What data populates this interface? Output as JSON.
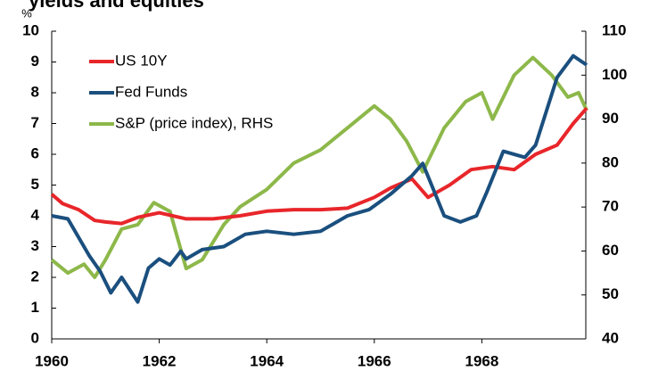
{
  "chart_data": {
    "type": "line",
    "title": "yields and equities",
    "y_unit": "%",
    "xlim": [
      1960,
      1970
    ],
    "xticks": [
      1960,
      1962,
      1964,
      1966,
      1968
    ],
    "ylim": [
      0,
      10
    ],
    "yticks": [
      0,
      1,
      2,
      3,
      4,
      5,
      6,
      7,
      8,
      9,
      10
    ],
    "y2lim": [
      40,
      110
    ],
    "y2ticks": [
      40,
      50,
      60,
      70,
      80,
      90,
      100,
      110
    ],
    "legend": "upper left",
    "series": [
      {
        "name": "US 10Y",
        "color": "#e8262a",
        "x": [
          1960,
          1960.2,
          1960.5,
          1960.8,
          1961,
          1961.3,
          1961.6,
          1962,
          1962.5,
          1963,
          1963.5,
          1964,
          1964.5,
          1965,
          1965.5,
          1966,
          1966.3,
          1966.7,
          1967,
          1967.4,
          1967.8,
          1968.2,
          1968.6,
          1969,
          1969.4,
          1969.7,
          1969.95
        ],
        "values": [
          4.7,
          4.4,
          4.2,
          3.85,
          3.8,
          3.75,
          3.95,
          4.1,
          3.9,
          3.9,
          4.0,
          4.15,
          4.2,
          4.2,
          4.25,
          4.6,
          4.9,
          5.2,
          4.6,
          5.0,
          5.5,
          5.6,
          5.5,
          6.0,
          6.3,
          7.0,
          7.5
        ]
      },
      {
        "name": "Fed Funds",
        "color": "#1a4f7e",
        "x": [
          1960,
          1960.3,
          1960.7,
          1960.9,
          1961.1,
          1961.3,
          1961.6,
          1961.8,
          1962,
          1962.2,
          1962.4,
          1962.5,
          1962.8,
          1963.2,
          1963.6,
          1964,
          1964.5,
          1965,
          1965.5,
          1965.9,
          1966.3,
          1966.7,
          1966.9,
          1967.3,
          1967.6,
          1967.9,
          1968.1,
          1968.4,
          1968.8,
          1969,
          1969.4,
          1969.7,
          1969.95
        ],
        "values": [
          4.0,
          3.9,
          2.7,
          2.2,
          1.5,
          2.0,
          1.2,
          2.3,
          2.6,
          2.4,
          2.85,
          2.6,
          2.9,
          3.0,
          3.4,
          3.5,
          3.4,
          3.5,
          4.0,
          4.2,
          4.7,
          5.3,
          5.7,
          4.0,
          3.8,
          4.0,
          4.8,
          6.1,
          5.9,
          6.3,
          8.5,
          9.2,
          8.9
        ]
      },
      {
        "name": "S&P (price index), RHS",
        "color": "#8db84a",
        "axis": "y2",
        "x": [
          1960,
          1960.3,
          1960.6,
          1960.8,
          1961,
          1961.3,
          1961.6,
          1961.9,
          1962.2,
          1962.5,
          1962.8,
          1963.2,
          1963.5,
          1964,
          1964.5,
          1965,
          1965.5,
          1966,
          1966.3,
          1966.6,
          1966.9,
          1967.3,
          1967.7,
          1968,
          1968.2,
          1968.6,
          1968.95,
          1969.3,
          1969.6,
          1969.8,
          1969.95
        ],
        "values": [
          58,
          55,
          57,
          54,
          58,
          65,
          66,
          71,
          69,
          56,
          58,
          66,
          70,
          74,
          80,
          83,
          88,
          93,
          90,
          85,
          78,
          88,
          94,
          96,
          90,
          100,
          104,
          100,
          95,
          96,
          92
        ]
      }
    ]
  }
}
